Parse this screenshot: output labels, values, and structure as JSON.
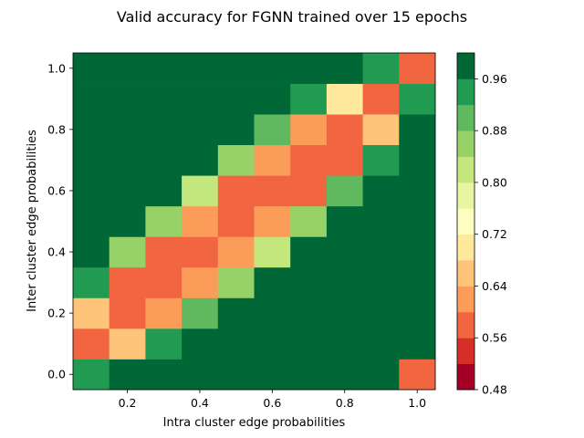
{
  "chart_data": {
    "type": "heatmap",
    "title": "Valid accuracy for FGNN trained over 15 epochs",
    "xlabel": "Intra cluster edge probabilities",
    "ylabel": "Inter cluster edge probabilities",
    "x": [
      0.1,
      0.2,
      0.3,
      0.4,
      0.5,
      0.6,
      0.7,
      0.8,
      0.9,
      1.0
    ],
    "y": [
      0.0,
      0.1,
      0.2,
      0.3,
      0.4,
      0.5,
      0.6,
      0.7,
      0.8,
      0.9,
      1.0
    ],
    "xticks": [
      0.2,
      0.4,
      0.6,
      0.8,
      1.0
    ],
    "yticks": [
      0.0,
      0.2,
      0.4,
      0.6,
      0.8,
      1.0
    ],
    "xtick_labels": [
      "0.2",
      "0.4",
      "0.6",
      "0.8",
      "1.0"
    ],
    "ytick_labels": [
      "0.0",
      "0.2",
      "0.4",
      "0.6",
      "0.8",
      "1.0"
    ],
    "values": [
      [
        0.94,
        0.98,
        0.98,
        0.98,
        0.98,
        0.98,
        0.98,
        0.98,
        0.98,
        0.59
      ],
      [
        0.57,
        0.67,
        0.94,
        0.98,
        0.98,
        0.98,
        0.98,
        0.98,
        0.98,
        0.98
      ],
      [
        0.67,
        0.57,
        0.63,
        0.9,
        0.98,
        0.98,
        0.98,
        0.98,
        0.98,
        0.98
      ],
      [
        0.94,
        0.59,
        0.57,
        0.63,
        0.86,
        0.98,
        0.98,
        0.98,
        0.98,
        0.98
      ],
      [
        0.98,
        0.86,
        0.57,
        0.57,
        0.63,
        0.82,
        0.98,
        0.98,
        0.98,
        0.98
      ],
      [
        0.98,
        0.98,
        0.86,
        0.63,
        0.57,
        0.63,
        0.86,
        0.98,
        0.98,
        0.98
      ],
      [
        0.98,
        0.98,
        0.98,
        0.82,
        0.59,
        0.57,
        0.59,
        0.9,
        0.98,
        0.98
      ],
      [
        0.98,
        0.98,
        0.98,
        0.98,
        0.86,
        0.63,
        0.57,
        0.59,
        0.94,
        0.98
      ],
      [
        0.98,
        0.98,
        0.98,
        0.98,
        0.98,
        0.9,
        0.63,
        0.57,
        0.67,
        0.98
      ],
      [
        0.98,
        0.98,
        0.98,
        0.98,
        0.98,
        0.98,
        0.94,
        0.71,
        0.57,
        0.94
      ],
      [
        0.98,
        0.98,
        0.98,
        0.98,
        0.98,
        0.98,
        0.98,
        0.98,
        0.94,
        0.57
      ]
    ],
    "colorbar": {
      "min": 0.48,
      "max": 1.0,
      "step": 0.04,
      "colormap": "RdYlGn",
      "ticks": [
        0.48,
        0.56,
        0.64,
        0.72,
        0.8,
        0.88,
        0.96
      ],
      "tick_labels": [
        "0.48",
        "0.56",
        "0.64",
        "0.72",
        "0.80",
        "0.88",
        "0.96"
      ],
      "colors": [
        "#a50026",
        "#d62f27",
        "#f16640",
        "#fb9d59",
        "#fec57a",
        "#fee99d",
        "#fefec0",
        "#e9f6a1",
        "#c3e67d",
        "#96d268",
        "#60b95f",
        "#219b51",
        "#006837"
      ]
    },
    "grid": false,
    "legend": "none"
  }
}
